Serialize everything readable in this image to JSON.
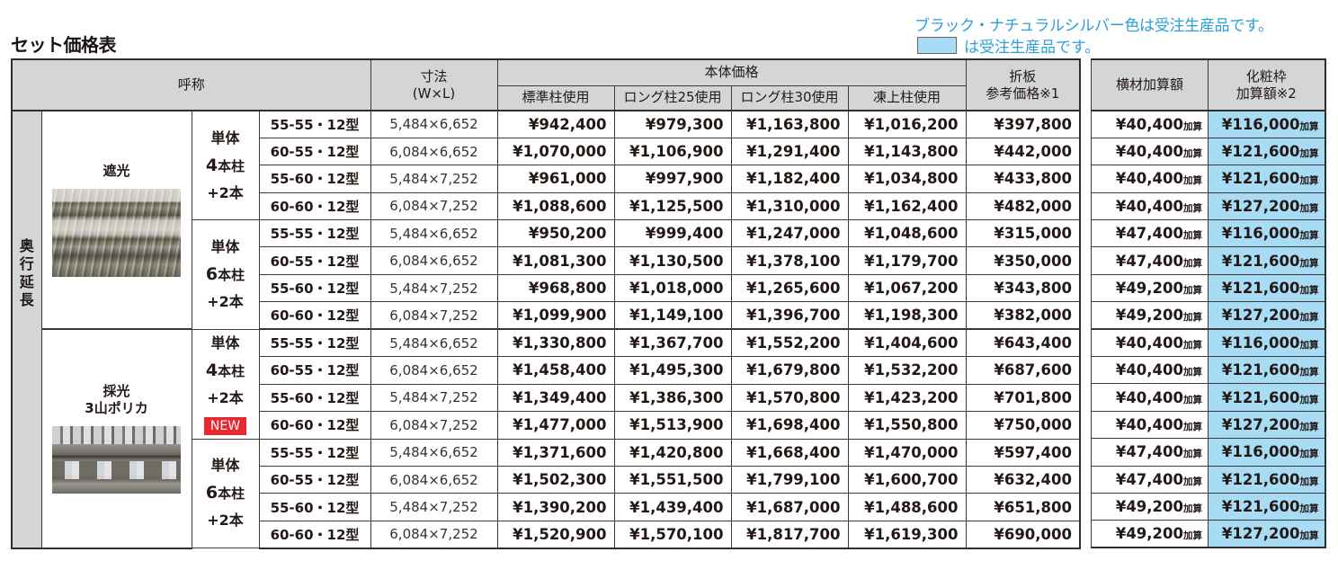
{
  "title": "セット価格表",
  "notes": {
    "line1": "ブラック・ナチュラルシルバー色は受注生産品です。",
    "line2": "は受注生産品です。",
    "swatch_color": "#a8dcf4"
  },
  "colors": {
    "header_bg": "#d4d5d7",
    "highlight_bg": "#a8dcf4",
    "note_text": "#2a9fd8",
    "new_badge": "#e8292f"
  },
  "headers": {
    "name": "呼称",
    "size_line1": "寸法",
    "size_line2": "(W×L)",
    "body_price": "本体価格",
    "standard": "標準柱使用",
    "long25": "ロング柱25使用",
    "long30": "ロング柱30使用",
    "frost": "凍上柱使用",
    "folded_line1": "折板",
    "folded_line2": "参考価格※1",
    "crossbar": "横材加算額",
    "cosmetic_line1": "化粧枠",
    "cosmetic_line2": "加算額※2"
  },
  "category": [
    "奥",
    "行",
    "延",
    "長"
  ],
  "add_suffix": "加算",
  "products": [
    {
      "name": "遮光",
      "name_line2": "",
      "image": "shade-panel-photo",
      "groups": [
        {
          "label_line1": "単体",
          "label_num": "4",
          "label_line2": "本柱",
          "label_line3": "+2本",
          "badge": "",
          "rows": [
            {
              "model": "55-55・12型",
              "size": "5,484×6,652",
              "standard": "¥942,400",
              "long25": "¥979,300",
              "long30": "¥1,163,800",
              "frost": "¥1,016,200",
              "folded": "¥397,800",
              "crossbar": "¥40,400",
              "cosmetic": "¥116,000"
            },
            {
              "model": "60-55・12型",
              "size": "6,084×6,652",
              "standard": "¥1,070,000",
              "long25": "¥1,106,900",
              "long30": "¥1,291,400",
              "frost": "¥1,143,800",
              "folded": "¥442,000",
              "crossbar": "¥40,400",
              "cosmetic": "¥121,600"
            },
            {
              "model": "55-60・12型",
              "size": "5,484×7,252",
              "standard": "¥961,000",
              "long25": "¥997,900",
              "long30": "¥1,182,400",
              "frost": "¥1,034,800",
              "folded": "¥433,800",
              "crossbar": "¥40,400",
              "cosmetic": "¥121,600"
            },
            {
              "model": "60-60・12型",
              "size": "6,084×7,252",
              "standard": "¥1,088,600",
              "long25": "¥1,125,500",
              "long30": "¥1,310,000",
              "frost": "¥1,162,400",
              "folded": "¥482,000",
              "crossbar": "¥40,400",
              "cosmetic": "¥127,200"
            }
          ]
        },
        {
          "label_line1": "単体",
          "label_num": "6",
          "label_line2": "本柱",
          "label_line3": "+2本",
          "badge": "",
          "rows": [
            {
              "model": "55-55・12型",
              "size": "5,484×6,652",
              "standard": "¥950,200",
              "long25": "¥999,400",
              "long30": "¥1,247,000",
              "frost": "¥1,048,600",
              "folded": "¥315,000",
              "crossbar": "¥47,400",
              "cosmetic": "¥116,000"
            },
            {
              "model": "60-55・12型",
              "size": "6,084×6,652",
              "standard": "¥1,081,300",
              "long25": "¥1,130,500",
              "long30": "¥1,378,100",
              "frost": "¥1,179,700",
              "folded": "¥350,000",
              "crossbar": "¥47,400",
              "cosmetic": "¥121,600"
            },
            {
              "model": "55-60・12型",
              "size": "5,484×7,252",
              "standard": "¥968,800",
              "long25": "¥1,018,000",
              "long30": "¥1,265,600",
              "frost": "¥1,067,200",
              "folded": "¥343,800",
              "crossbar": "¥49,200",
              "cosmetic": "¥121,600"
            },
            {
              "model": "60-60・12型",
              "size": "6,084×7,252",
              "standard": "¥1,099,900",
              "long25": "¥1,149,100",
              "long30": "¥1,396,700",
              "frost": "¥1,198,300",
              "folded": "¥382,000",
              "crossbar": "¥49,200",
              "cosmetic": "¥127,200"
            }
          ]
        }
      ]
    },
    {
      "name": "採光",
      "name_line2": "3山ポリカ",
      "image": "polycarbonate-panel-photo",
      "groups": [
        {
          "label_line1": "単体",
          "label_num": "4",
          "label_line2": "本柱",
          "label_line3": "+2本",
          "badge": "NEW",
          "rows": [
            {
              "model": "55-55・12型",
              "size": "5,484×6,652",
              "standard": "¥1,330,800",
              "long25": "¥1,367,700",
              "long30": "¥1,552,200",
              "frost": "¥1,404,600",
              "folded": "¥643,400",
              "crossbar": "¥40,400",
              "cosmetic": "¥116,000"
            },
            {
              "model": "60-55・12型",
              "size": "6,084×6,652",
              "standard": "¥1,458,400",
              "long25": "¥1,495,300",
              "long30": "¥1,679,800",
              "frost": "¥1,532,200",
              "folded": "¥687,600",
              "crossbar": "¥40,400",
              "cosmetic": "¥121,600"
            },
            {
              "model": "55-60・12型",
              "size": "5,484×7,252",
              "standard": "¥1,349,400",
              "long25": "¥1,386,300",
              "long30": "¥1,570,800",
              "frost": "¥1,423,200",
              "folded": "¥701,800",
              "crossbar": "¥40,400",
              "cosmetic": "¥121,600"
            },
            {
              "model": "60-60・12型",
              "size": "6,084×7,252",
              "standard": "¥1,477,000",
              "long25": "¥1,513,900",
              "long30": "¥1,698,400",
              "frost": "¥1,550,800",
              "folded": "¥750,000",
              "crossbar": "¥40,400",
              "cosmetic": "¥127,200"
            }
          ]
        },
        {
          "label_line1": "単体",
          "label_num": "6",
          "label_line2": "本柱",
          "label_line3": "+2本",
          "badge": "",
          "rows": [
            {
              "model": "55-55・12型",
              "size": "5,484×6,652",
              "standard": "¥1,371,600",
              "long25": "¥1,420,800",
              "long30": "¥1,668,400",
              "frost": "¥1,470,000",
              "folded": "¥597,400",
              "crossbar": "¥47,400",
              "cosmetic": "¥116,000"
            },
            {
              "model": "60-55・12型",
              "size": "6,084×6,652",
              "standard": "¥1,502,300",
              "long25": "¥1,551,500",
              "long30": "¥1,799,100",
              "frost": "¥1,600,700",
              "folded": "¥632,400",
              "crossbar": "¥47,400",
              "cosmetic": "¥121,600"
            },
            {
              "model": "55-60・12型",
              "size": "5,484×7,252",
              "standard": "¥1,390,200",
              "long25": "¥1,439,400",
              "long30": "¥1,687,000",
              "frost": "¥1,488,600",
              "folded": "¥651,800",
              "crossbar": "¥49,200",
              "cosmetic": "¥121,600"
            },
            {
              "model": "60-60・12型",
              "size": "6,084×7,252",
              "standard": "¥1,520,900",
              "long25": "¥1,570,100",
              "long30": "¥1,817,700",
              "frost": "¥1,619,300",
              "folded": "¥690,000",
              "crossbar": "¥49,200",
              "cosmetic": "¥127,200"
            }
          ]
        }
      ]
    }
  ]
}
